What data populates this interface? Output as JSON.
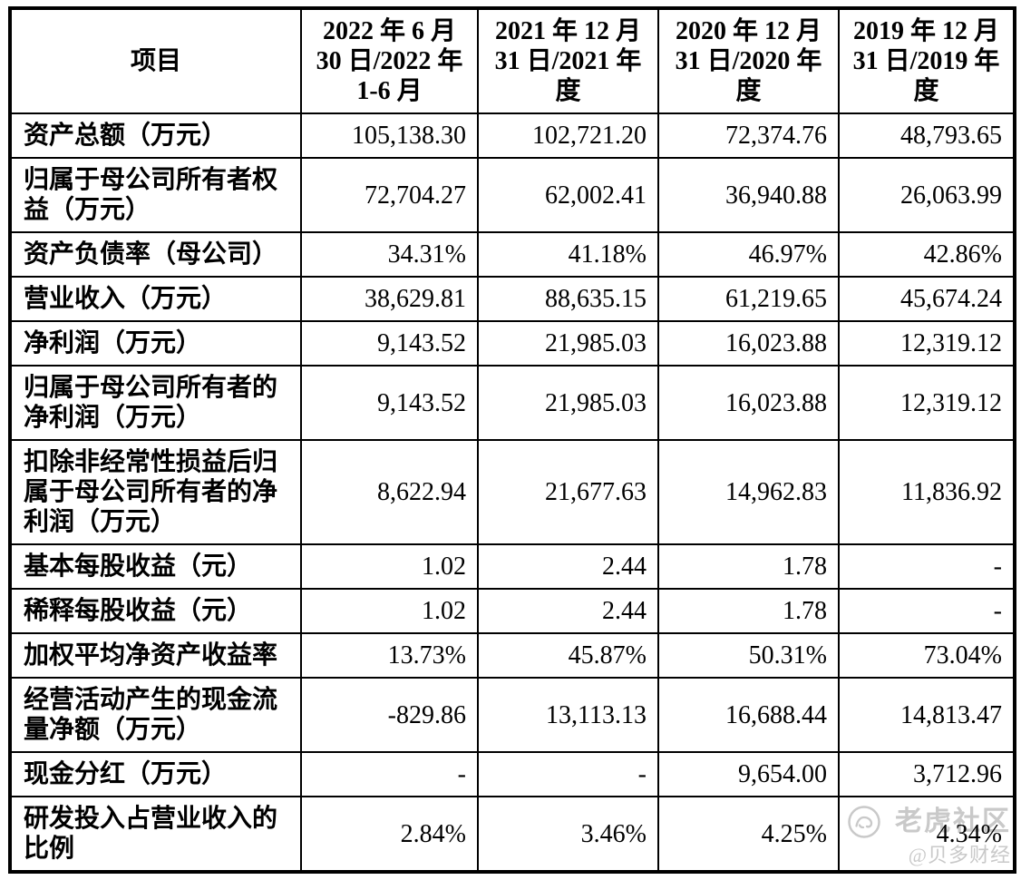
{
  "colors": {
    "border": "#000000",
    "text": "#000000",
    "background": "#ffffff",
    "watermark": "#c9c9c9"
  },
  "table": {
    "columns": [
      "项目",
      "2022 年 6 月\n30 日/2022 年\n1-6 月",
      "2021 年 12 月\n31 日/2021 年\n度",
      "2020 年 12 月\n31 日/2020 年\n度",
      "2019 年 12 月\n31 日/2019 年\n度"
    ],
    "rows": [
      {
        "label": "资产总额（万元）",
        "values": [
          "105,138.30",
          "102,721.20",
          "72,374.76",
          "48,793.65"
        ]
      },
      {
        "label": "归属于母公司所有者权\n益（万元）",
        "values": [
          "72,704.27",
          "62,002.41",
          "36,940.88",
          "26,063.99"
        ]
      },
      {
        "label": "资产负债率（母公司）",
        "values": [
          "34.31%",
          "41.18%",
          "46.97%",
          "42.86%"
        ]
      },
      {
        "label": "营业收入（万元）",
        "values": [
          "38,629.81",
          "88,635.15",
          "61,219.65",
          "45,674.24"
        ]
      },
      {
        "label": "净利润（万元）",
        "values": [
          "9,143.52",
          "21,985.03",
          "16,023.88",
          "12,319.12"
        ]
      },
      {
        "label": "归属于母公司所有者的\n净利润（万元）",
        "values": [
          "9,143.52",
          "21,985.03",
          "16,023.88",
          "12,319.12"
        ]
      },
      {
        "label": "扣除非经常性损益后归\n属于母公司所有者的净\n利润（万元）",
        "values": [
          "8,622.94",
          "21,677.63",
          "14,962.83",
          "11,836.92"
        ]
      },
      {
        "label": "基本每股收益（元）",
        "values": [
          "1.02",
          "2.44",
          "1.78",
          "-"
        ]
      },
      {
        "label": "稀释每股收益（元）",
        "values": [
          "1.02",
          "2.44",
          "1.78",
          "-"
        ]
      },
      {
        "label": "加权平均净资产收益率",
        "values": [
          "13.73%",
          "45.87%",
          "50.31%",
          "73.04%"
        ]
      },
      {
        "label": "经营活动产生的现金流\n量净额（万元）",
        "values": [
          "-829.86",
          "13,113.13",
          "16,688.44",
          "14,813.47"
        ]
      },
      {
        "label": "现金分红（万元）",
        "values": [
          "-",
          "-",
          "9,654.00",
          "3,712.96"
        ]
      },
      {
        "label": "研发投入占营业收入的\n比例",
        "values": [
          "2.84%",
          "3.46%",
          "4.25%",
          "4.34%"
        ]
      }
    ]
  },
  "watermark": {
    "community": "老虎社区",
    "handle": "@贝多财经",
    "icon": "tiger-logo-icon"
  }
}
